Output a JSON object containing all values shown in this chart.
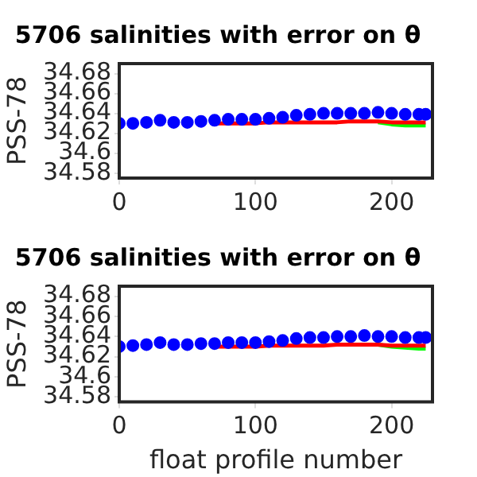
{
  "chart_data": [
    {
      "type": "scatter",
      "title": "5706 salinities with error on θ",
      "ylabel": "PSS-78",
      "xlim": [
        0,
        230
      ],
      "xticks": [
        0,
        100,
        200
      ],
      "ylim": [
        34.575,
        34.69
      ],
      "yticks": [
        34.58,
        34.6,
        34.62,
        34.64,
        34.66,
        34.68
      ],
      "grid": false,
      "legend": false,
      "x": [
        0,
        10,
        20,
        30,
        40,
        50,
        60,
        70,
        80,
        90,
        100,
        110,
        120,
        130,
        140,
        150,
        160,
        170,
        180,
        190,
        200,
        210,
        220,
        225
      ],
      "series": [
        {
          "type": "line",
          "marker": "none",
          "color": "#00ff00",
          "values": [
            null,
            null,
            null,
            null,
            null,
            null,
            null,
            null,
            null,
            null,
            null,
            null,
            null,
            null,
            null,
            null,
            null,
            null,
            null,
            34.631,
            34.629,
            34.628,
            34.628,
            34.628
          ]
        },
        {
          "type": "line",
          "marker": "none",
          "color": "#ff0000",
          "values": [
            null,
            null,
            null,
            null,
            null,
            null,
            null,
            34.63,
            34.63,
            34.63,
            34.63,
            34.631,
            34.631,
            34.631,
            34.631,
            34.631,
            34.631,
            34.632,
            34.632,
            34.632,
            34.631,
            34.631,
            34.631,
            34.631
          ]
        },
        {
          "marker": "circle",
          "color": "#0000ff",
          "values": [
            34.63,
            34.63,
            34.631,
            34.633,
            34.631,
            34.631,
            34.632,
            34.633,
            34.634,
            34.634,
            34.634,
            34.635,
            34.636,
            34.638,
            34.639,
            34.64,
            34.64,
            34.64,
            34.64,
            34.641,
            34.64,
            34.639,
            34.639,
            34.639
          ]
        }
      ]
    },
    {
      "type": "scatter",
      "title": "5706 salinities with error on θ",
      "ylabel": "PSS-78",
      "xlabel": "float profile number",
      "xlim": [
        0,
        230
      ],
      "xticks": [
        0,
        100,
        200
      ],
      "ylim": [
        34.575,
        34.69
      ],
      "yticks": [
        34.58,
        34.6,
        34.62,
        34.64,
        34.66,
        34.68
      ],
      "grid": false,
      "legend": false,
      "x": [
        0,
        10,
        20,
        30,
        40,
        50,
        60,
        70,
        80,
        90,
        100,
        110,
        120,
        130,
        140,
        150,
        160,
        170,
        180,
        190,
        200,
        210,
        220,
        225
      ],
      "series": [
        {
          "type": "line",
          "marker": "none",
          "color": "#00ff00",
          "values": [
            null,
            null,
            null,
            null,
            null,
            null,
            null,
            null,
            null,
            null,
            null,
            null,
            null,
            null,
            null,
            null,
            null,
            null,
            null,
            34.632,
            34.63,
            34.629,
            34.628,
            34.628
          ]
        },
        {
          "type": "line",
          "marker": "none",
          "color": "#ff0000",
          "values": [
            null,
            null,
            null,
            null,
            null,
            null,
            null,
            34.63,
            34.63,
            34.63,
            34.63,
            34.631,
            34.631,
            34.631,
            34.631,
            34.631,
            34.632,
            34.632,
            34.632,
            34.632,
            34.631,
            34.631,
            34.631,
            34.631
          ]
        },
        {
          "marker": "circle",
          "color": "#0000ff",
          "values": [
            34.63,
            34.631,
            34.632,
            34.634,
            34.632,
            34.632,
            34.633,
            34.633,
            34.634,
            34.634,
            34.634,
            34.635,
            34.636,
            34.638,
            34.639,
            34.639,
            34.64,
            34.64,
            34.641,
            34.64,
            34.64,
            34.639,
            34.639,
            34.639
          ]
        }
      ]
    }
  ]
}
